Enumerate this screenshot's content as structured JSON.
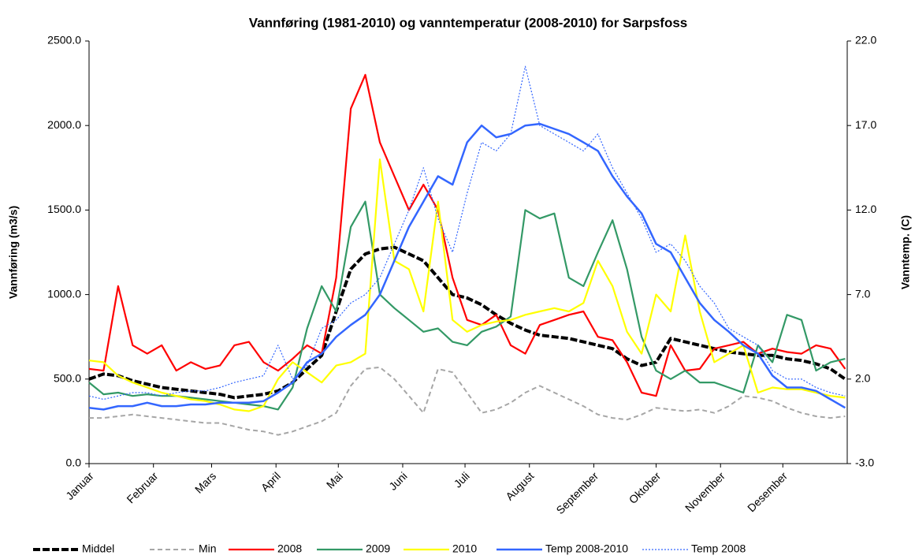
{
  "chart_data": {
    "type": "line",
    "title": "Vannføring (1981-2010) og vanntemperatur (2008-2010) for Sarpsfoss",
    "y_label": "Vannføring (m3/s)",
    "y2_label": "Vanntemp. (C)",
    "x": [
      0,
      7,
      14,
      21,
      28,
      35,
      42,
      49,
      56,
      63,
      70,
      77,
      84,
      91,
      98,
      105,
      112,
      119,
      126,
      133,
      140,
      147,
      154,
      161,
      168,
      175,
      182,
      189,
      196,
      203,
      210,
      217,
      224,
      231,
      238,
      245,
      252,
      259,
      266,
      273,
      280,
      287,
      294,
      301,
      308,
      315,
      322,
      329,
      336,
      343,
      350,
      357,
      364
    ],
    "xlim": [
      0,
      365
    ],
    "xticks": [
      {
        "value": 0,
        "label": "Januar"
      },
      {
        "value": 31,
        "label": "Februar"
      },
      {
        "value": 59,
        "label": "Mars"
      },
      {
        "value": 90,
        "label": "April"
      },
      {
        "value": 120,
        "label": "Mai"
      },
      {
        "value": 151,
        "label": "Juni"
      },
      {
        "value": 181,
        "label": "Juli"
      },
      {
        "value": 212,
        "label": "August"
      },
      {
        "value": 243,
        "label": "September"
      },
      {
        "value": 273,
        "label": "Oktober"
      },
      {
        "value": 304,
        "label": "November"
      },
      {
        "value": 334,
        "label": "Desember"
      }
    ],
    "ylim": [
      0,
      2500
    ],
    "yticks": [
      {
        "value": 0,
        "label": "0.0"
      },
      {
        "value": 500,
        "label": "500.0"
      },
      {
        "value": 1000,
        "label": "1000.0"
      },
      {
        "value": 1500,
        "label": "1500.0"
      },
      {
        "value": 2000,
        "label": "2000.0"
      },
      {
        "value": 2500,
        "label": "2500.0"
      }
    ],
    "y2lim": [
      -3,
      22
    ],
    "y2ticks": [
      {
        "value": -3,
        "label": "-3.0"
      },
      {
        "value": 2,
        "label": "2.0"
      },
      {
        "value": 7,
        "label": "7.0"
      },
      {
        "value": 12,
        "label": "12.0"
      },
      {
        "value": 17,
        "label": "17.0"
      },
      {
        "value": 22,
        "label": "22.0"
      }
    ],
    "legend": "bottom",
    "series": [
      {
        "name": "Middel",
        "color": "#000000",
        "line_style": "dashed-thick",
        "values": [
          500,
          530,
          520,
          490,
          470,
          450,
          440,
          430,
          420,
          410,
          390,
          400,
          410,
          430,
          480,
          560,
          640,
          900,
          1150,
          1240,
          1270,
          1280,
          1240,
          1200,
          1100,
          1000,
          980,
          940,
          880,
          830,
          790,
          760,
          750,
          740,
          720,
          700,
          680,
          620,
          580,
          600,
          740,
          720,
          700,
          680,
          660,
          650,
          640,
          640,
          620,
          610,
          590,
          560,
          500
        ]
      },
      {
        "name": "Min",
        "color": "#a6a6a6",
        "line_style": "dashed",
        "values": [
          270,
          270,
          280,
          290,
          280,
          270,
          260,
          250,
          240,
          240,
          220,
          200,
          190,
          170,
          190,
          220,
          250,
          300,
          460,
          560,
          570,
          500,
          400,
          300,
          560,
          540,
          420,
          300,
          320,
          360,
          420,
          460,
          420,
          380,
          340,
          290,
          270,
          260,
          290,
          330,
          320,
          310,
          320,
          300,
          340,
          400,
          390,
          370,
          330,
          300,
          280,
          270,
          280
        ]
      },
      {
        "name": "2008",
        "color": "#ff0000",
        "line_style": "solid",
        "values": [
          560,
          550,
          1050,
          700,
          650,
          700,
          550,
          600,
          560,
          580,
          700,
          720,
          600,
          550,
          620,
          700,
          650,
          1100,
          2100,
          2300,
          1900,
          1700,
          1500,
          1650,
          1500,
          1100,
          850,
          820,
          880,
          700,
          650,
          820,
          850,
          880,
          900,
          750,
          730,
          600,
          420,
          400,
          700,
          550,
          560,
          680,
          700,
          720,
          650,
          680,
          660,
          650,
          700,
          680,
          560
        ]
      },
      {
        "name": "2009",
        "color": "#339966",
        "line_style": "solid",
        "values": [
          480,
          410,
          420,
          400,
          410,
          400,
          400,
          390,
          380,
          370,
          360,
          350,
          340,
          320,
          450,
          800,
          1050,
          900,
          1400,
          1550,
          1000,
          920,
          850,
          780,
          800,
          720,
          700,
          780,
          810,
          870,
          1500,
          1450,
          1480,
          1100,
          1050,
          1250,
          1440,
          1150,
          750,
          550,
          500,
          550,
          480,
          480,
          450,
          420,
          700,
          600,
          880,
          850,
          550,
          600,
          620
        ]
      },
      {
        "name": "2010",
        "color": "#ffff00",
        "line_style": "solid",
        "values": [
          610,
          600,
          520,
          480,
          450,
          420,
          400,
          380,
          370,
          350,
          320,
          310,
          340,
          500,
          600,
          540,
          480,
          580,
          600,
          650,
          1800,
          1200,
          1150,
          900,
          1550,
          850,
          780,
          820,
          840,
          850,
          880,
          900,
          920,
          900,
          950,
          1200,
          1050,
          780,
          650,
          1000,
          900,
          1350,
          900,
          600,
          650,
          700,
          420,
          450,
          440,
          440,
          420,
          400,
          390
        ]
      },
      {
        "name": "Temp 2008-2010",
        "color": "#3366ff",
        "line_style": "solid-thick",
        "axis": "y2",
        "values": [
          0.3,
          0.2,
          0.4,
          0.4,
          0.6,
          0.4,
          0.4,
          0.5,
          0.5,
          0.6,
          0.6,
          0.6,
          0.7,
          1.2,
          1.8,
          3.0,
          3.5,
          4.5,
          5.2,
          5.8,
          7.0,
          9.0,
          11.0,
          12.5,
          14.0,
          13.5,
          16.0,
          17.0,
          16.3,
          16.5,
          17.0,
          17.1,
          16.8,
          16.5,
          16.0,
          15.5,
          14.0,
          12.8,
          11.8,
          10.0,
          9.5,
          8.0,
          6.5,
          5.5,
          4.8,
          4.0,
          3.5,
          2.2,
          1.5,
          1.5,
          1.3,
          0.8,
          0.3
        ]
      },
      {
        "name": "Temp 2008",
        "color": "#3366ff",
        "line_style": "dotted",
        "axis": "y2",
        "values": [
          1.0,
          0.8,
          1.0,
          1.2,
          1.2,
          1.0,
          1.2,
          1.3,
          1.3,
          1.5,
          1.8,
          2.0,
          2.2,
          4.0,
          2.0,
          2.8,
          5.0,
          5.5,
          6.5,
          7.0,
          8.0,
          10.0,
          12.0,
          14.5,
          11.5,
          9.5,
          13.0,
          16.0,
          15.5,
          16.5,
          20.5,
          17.0,
          16.5,
          16.0,
          15.5,
          16.5,
          14.5,
          13.0,
          11.5,
          9.5,
          10.0,
          9.0,
          7.5,
          6.5,
          5.0,
          4.5,
          4.0,
          2.5,
          2.0,
          2.0,
          1.5,
          1.2,
          1.0
        ]
      }
    ]
  }
}
